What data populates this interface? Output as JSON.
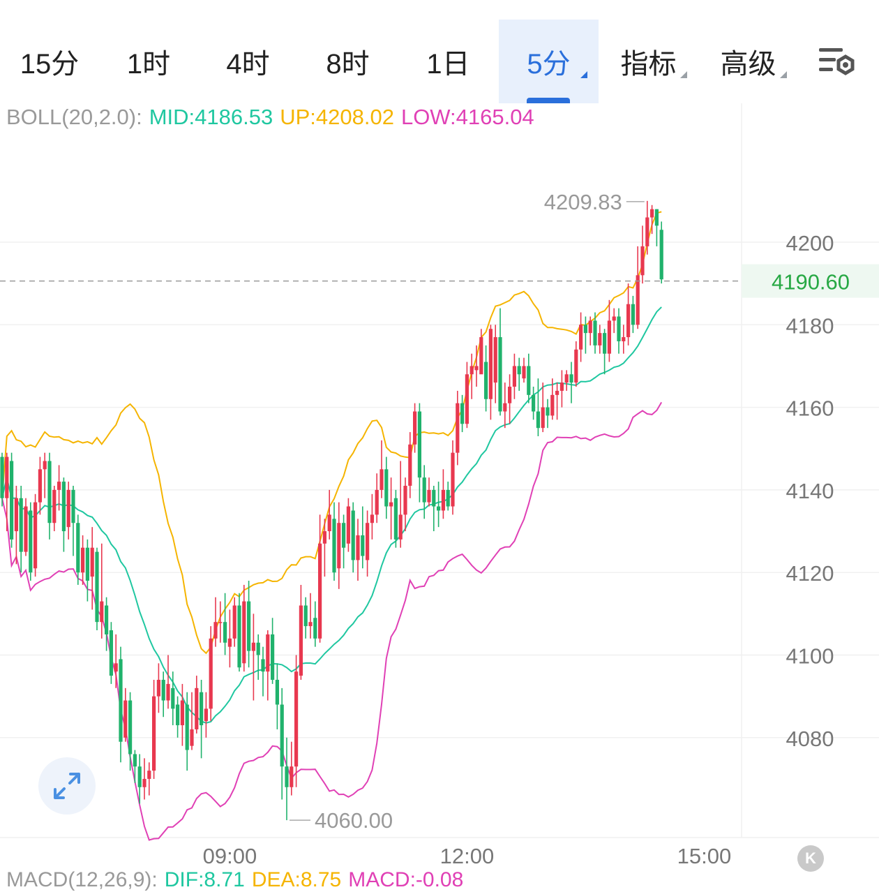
{
  "tabs": [
    {
      "label": "15分",
      "active": false,
      "menu": false
    },
    {
      "label": "1时",
      "active": false,
      "menu": false
    },
    {
      "label": "4时",
      "active": false,
      "menu": false
    },
    {
      "label": "8时",
      "active": false,
      "menu": false
    },
    {
      "label": "1日",
      "active": false,
      "menu": false
    },
    {
      "label": "5分",
      "active": true,
      "menu": true
    },
    {
      "label": "指标",
      "active": false,
      "menu": true
    },
    {
      "label": "高级",
      "active": false,
      "menu": true
    }
  ],
  "settings_icon": "chart-settings-icon",
  "legend": {
    "name": "BOLL(20,2.0):",
    "mid": "MID:4186.53",
    "up": "UP:4208.02",
    "low": "LOW:4165.04"
  },
  "macd_legend": {
    "name": "MACD(12,26,9):",
    "dif": "DIF:8.71",
    "dea": "DEA:8.75",
    "macd": "MACD:-0.08"
  },
  "colors": {
    "up": "#e8384f",
    "down": "#20b26c",
    "mid": "#1fc7a0",
    "upper": "#f5b400",
    "lower": "#e040b5",
    "axis": "#777777",
    "grid": "#f0f0f0",
    "accent": "#2a6fdb",
    "price_tag": "#27a844"
  },
  "expand_icon": "expand-icon",
  "k_button": "K",
  "chart_data": {
    "type": "candlestick",
    "y_ticks": [
      4200,
      4180,
      4160,
      4140,
      4120,
      4100,
      4080
    ],
    "ylim": [
      4056,
      4236
    ],
    "x_ticks": [
      {
        "label": "09:00",
        "index": 48
      },
      {
        "label": "12:00",
        "index": 98
      },
      {
        "label": "15:00",
        "index": 148
      }
    ],
    "last_price": "4190.60",
    "high_marker": "4209.83",
    "low_marker": "4060.00",
    "candles": [
      [
        4148,
        4138,
        4149,
        4136
      ],
      [
        4138,
        4148,
        4149,
        4130
      ],
      [
        4147,
        4128,
        4149,
        4126
      ],
      [
        4130,
        4138,
        4141,
        4122
      ],
      [
        4138,
        4125,
        4141,
        4120
      ],
      [
        4125,
        4136,
        4138,
        4124
      ],
      [
        4135,
        4120,
        4137,
        4118
      ],
      [
        4121,
        4137,
        4139,
        4119
      ],
      [
        4137,
        4145,
        4148,
        4134
      ],
      [
        4145,
        4147,
        4149,
        4138
      ],
      [
        4147,
        4132,
        4149,
        4128
      ],
      [
        4132,
        4140,
        4141,
        4130
      ],
      [
        4140,
        4142,
        4146,
        4135
      ],
      [
        4142,
        4130,
        4143,
        4125
      ],
      [
        4131,
        4140,
        4142,
        4128
      ],
      [
        4140,
        4132,
        4141,
        4124
      ],
      [
        4132,
        4120,
        4134,
        4117
      ],
      [
        4120,
        4126,
        4129,
        4117
      ],
      [
        4126,
        4118,
        4128,
        4113
      ],
      [
        4119,
        4126,
        4131,
        4111
      ],
      [
        4125,
        4108,
        4126,
        4106
      ],
      [
        4108,
        4113,
        4127,
        4104
      ],
      [
        4112,
        4105,
        4114,
        4101
      ],
      [
        4106,
        4095,
        4108,
        4093
      ],
      [
        4096,
        4098,
        4105,
        4092
      ],
      [
        4099,
        4079,
        4102,
        4074
      ],
      [
        4080,
        4089,
        4092,
        4079
      ],
      [
        4089,
        4076,
        4091,
        4072
      ],
      [
        4076,
        4073,
        4077,
        4069
      ],
      [
        4073,
        4068,
        4076,
        4064
      ],
      [
        4068,
        4070,
        4075,
        4065
      ],
      [
        4070,
        4072,
        4074,
        4066
      ],
      [
        4072,
        4090,
        4094,
        4070
      ],
      [
        4090,
        4094,
        4098,
        4086
      ],
      [
        4094,
        4089,
        4096,
        4085
      ],
      [
        4089,
        4093,
        4100,
        4087
      ],
      [
        4092,
        4087,
        4096,
        4083
      ],
      [
        4088,
        4083,
        4090,
        4080
      ],
      [
        4083,
        4089,
        4093,
        4078
      ],
      [
        4088,
        4077,
        4091,
        4072
      ],
      [
        4078,
        4082,
        4091,
        4077
      ],
      [
        4082,
        4092,
        4095,
        4081
      ],
      [
        4091,
        4083,
        4094,
        4075
      ],
      [
        4084,
        4087,
        4091,
        4080
      ],
      [
        4087,
        4104,
        4107,
        4084
      ],
      [
        4104,
        4108,
        4114,
        4102
      ],
      [
        4108,
        4108,
        4113,
        4103
      ],
      [
        4108,
        4103,
        4115,
        4100
      ],
      [
        4102,
        4104,
        4111,
        4097
      ],
      [
        4104,
        4112,
        4114,
        4102
      ],
      [
        4112,
        4097,
        4115,
        4096
      ],
      [
        4098,
        4113,
        4117,
        4096
      ],
      [
        4113,
        4101,
        4118,
        4097
      ],
      [
        4101,
        4103,
        4110,
        4089
      ],
      [
        4103,
        4100,
        4105,
        4094
      ],
      [
        4099,
        4096,
        4102,
        4090
      ],
      [
        4096,
        4105,
        4106,
        4089
      ],
      [
        4105,
        4094,
        4109,
        4093
      ],
      [
        4094,
        4088,
        4098,
        4082
      ],
      [
        4088,
        4073,
        4092,
        4065
      ],
      [
        4073,
        4068,
        4080,
        4060
      ],
      [
        4068,
        4073,
        4079,
        4066
      ],
      [
        4073,
        4096,
        4100,
        4068
      ],
      [
        4095,
        4112,
        4117,
        4094
      ],
      [
        4112,
        4107,
        4114,
        4104
      ],
      [
        4107,
        4108,
        4115,
        4104
      ],
      [
        4109,
        4104,
        4113,
        4102
      ],
      [
        4104,
        4127,
        4134,
        4103
      ],
      [
        4127,
        4130,
        4133,
        4119
      ],
      [
        4130,
        4134,
        4140,
        4128
      ],
      [
        4133,
        4120,
        4137,
        4118
      ],
      [
        4121,
        4132,
        4137,
        4116
      ],
      [
        4132,
        4126,
        4134,
        4121
      ],
      [
        4127,
        4136,
        4138,
        4125
      ],
      [
        4135,
        4123,
        4137,
        4120
      ],
      [
        4123,
        4129,
        4133,
        4118
      ],
      [
        4129,
        4124,
        4136,
        4121
      ],
      [
        4123,
        4132,
        4135,
        4119
      ],
      [
        4132,
        4134,
        4139,
        4128
      ],
      [
        4134,
        4140,
        4144,
        4132
      ],
      [
        4140,
        4145,
        4152,
        4138
      ],
      [
        4145,
        4136,
        4148,
        4133
      ],
      [
        4136,
        4137,
        4143,
        4128
      ],
      [
        4138,
        4128,
        4140,
        4126
      ],
      [
        4128,
        4134,
        4147,
        4126
      ],
      [
        4134,
        4141,
        4143,
        4130
      ],
      [
        4141,
        4151,
        4154,
        4138
      ],
      [
        4151,
        4159,
        4161,
        4149
      ],
      [
        4159,
        4143,
        4161,
        4137
      ],
      [
        4143,
        4137,
        4146,
        4133
      ],
      [
        4137,
        4140,
        4143,
        4136
      ],
      [
        4140,
        4136,
        4141,
        4130
      ],
      [
        4136,
        4135,
        4142,
        4131
      ],
      [
        4135,
        4140,
        4145,
        4133
      ],
      [
        4140,
        4136,
        4142,
        4135
      ],
      [
        4136,
        4149,
        4152,
        4134
      ],
      [
        4149,
        4161,
        4164,
        4146
      ],
      [
        4161,
        4156,
        4163,
        4154
      ],
      [
        4156,
        4168,
        4171,
        4155
      ],
      [
        4168,
        4170,
        4173,
        4162
      ],
      [
        4169,
        4170,
        4175,
        4165
      ],
      [
        4168,
        4177,
        4179,
        4170
      ],
      [
        4171,
        4162,
        4175,
        4159
      ],
      [
        4162,
        4179,
        4180,
        4157
      ],
      [
        4166,
        4177,
        4180,
        4161
      ],
      [
        4177,
        4159,
        4184,
        4158
      ],
      [
        4159,
        4161,
        4166,
        4155
      ],
      [
        4161,
        4165,
        4168,
        4156
      ],
      [
        4165,
        4170,
        4173,
        4162
      ],
      [
        4170,
        4168,
        4172,
        4164
      ],
      [
        4167,
        4170,
        4172,
        4166
      ],
      [
        4170,
        4163,
        4173,
        4161
      ],
      [
        4163,
        4159,
        4165,
        4157
      ],
      [
        4159,
        4155,
        4167,
        4153
      ],
      [
        4155,
        4160,
        4166,
        4154
      ],
      [
        4160,
        4158,
        4162,
        4155
      ],
      [
        4158,
        4163,
        4167,
        4157
      ],
      [
        4163,
        4164,
        4166,
        4157
      ],
      [
        4164,
        4166,
        4169,
        4160
      ],
      [
        4166,
        4168,
        4169,
        4164
      ],
      [
        4168,
        4166,
        4171,
        4161
      ],
      [
        4166,
        4174,
        4176,
        4165
      ],
      [
        4174,
        4180,
        4183,
        4171
      ],
      [
        4180,
        4178,
        4182,
        4173
      ],
      [
        4178,
        4181,
        4182,
        4175
      ],
      [
        4181,
        4175,
        4183,
        4173
      ],
      [
        4175,
        4178,
        4180,
        4173
      ],
      [
        4178,
        4173,
        4179,
        4168
      ],
      [
        4173,
        4181,
        4186,
        4171
      ],
      [
        4181,
        4182,
        4184,
        4178
      ],
      [
        4182,
        4176,
        4184,
        4173
      ],
      [
        4176,
        4177,
        4180,
        4173
      ],
      [
        4177,
        4185,
        4190,
        4175
      ],
      [
        4185,
        4180,
        4187,
        4178
      ],
      [
        4180,
        4192,
        4199,
        4179
      ],
      [
        4192,
        4199,
        4204,
        4190
      ],
      [
        4199,
        4206,
        4210,
        4197
      ],
      [
        4206,
        4208,
        4209,
        4202
      ],
      [
        4208,
        4204,
        4208,
        4199
      ],
      [
        4203,
        4191,
        4205,
        4190
      ]
    ]
  }
}
